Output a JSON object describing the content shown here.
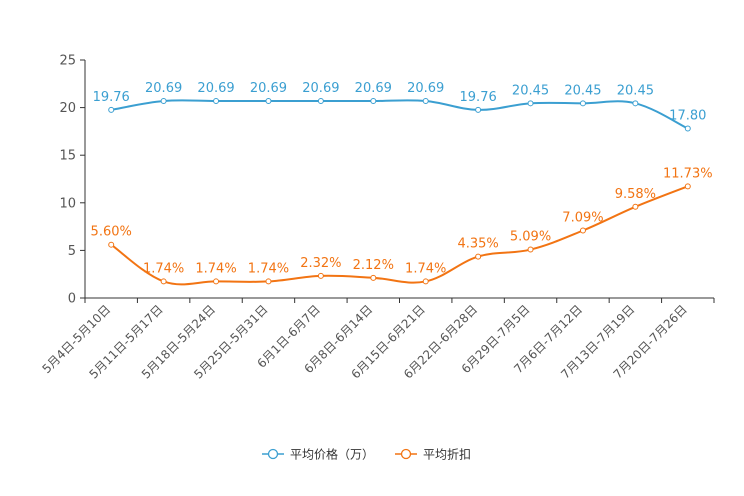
{
  "chart_data": {
    "type": "line",
    "categories": [
      "5月4日-5月10日",
      "5月11日-5月17日",
      "5月18日-5月24日",
      "5月25日-5月31日",
      "6月1日-6月7日",
      "6月8日-6月14日",
      "6月15日-6月21日",
      "6月22日-6月28日",
      "6月29日-7月5日",
      "7月6日-7月12日",
      "7月13日-7月19日",
      "7月20日-7月26日"
    ],
    "series": [
      {
        "name": "平均价格（万）",
        "color": "#3b9fd1",
        "values": [
          19.76,
          20.69,
          20.69,
          20.69,
          20.69,
          20.69,
          20.69,
          19.76,
          20.45,
          20.45,
          20.45,
          17.8
        ],
        "labels": [
          "19.76",
          "20.69",
          "20.69",
          "20.69",
          "20.69",
          "20.69",
          "20.69",
          "19.76",
          "20.45",
          "20.45",
          "20.45",
          "17.80"
        ]
      },
      {
        "name": "平均折扣",
        "color": "#f27413",
        "values": [
          5.6,
          1.74,
          1.74,
          1.74,
          2.32,
          2.12,
          1.74,
          4.35,
          5.09,
          7.09,
          9.58,
          11.73
        ],
        "labels": [
          "5.60%",
          "1.74%",
          "1.74%",
          "1.74%",
          "2.32%",
          "2.12%",
          "1.74%",
          "4.35%",
          "5.09%",
          "7.09%",
          "9.58%",
          "11.73%"
        ]
      }
    ],
    "yticks": [
      "0",
      "5",
      "10",
      "15",
      "20",
      "25"
    ],
    "ylim": [
      0,
      25
    ],
    "legend_position": "bottom-center"
  }
}
